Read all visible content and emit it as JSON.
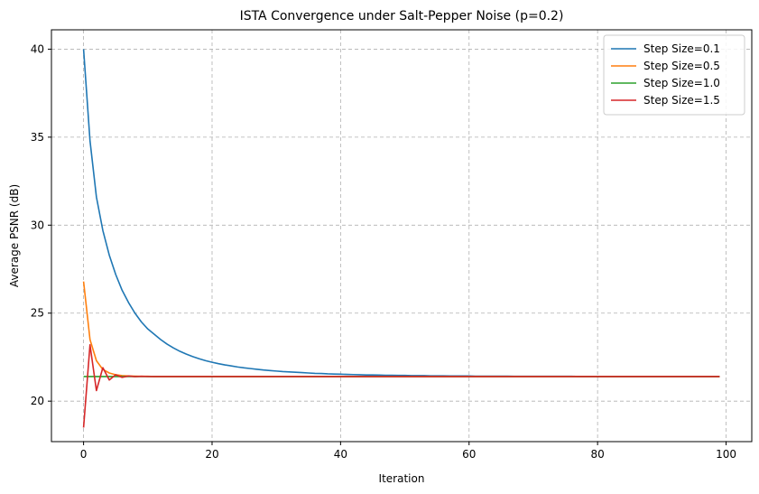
{
  "chart_data": {
    "type": "line",
    "title": "ISTA Convergence under Salt-Pepper Noise (p=0.2)",
    "xlabel": "Iteration",
    "ylabel": "Average PSNR (dB)",
    "xlim": [
      -5,
      104
    ],
    "ylim": [
      17.7,
      41.1
    ],
    "xticks": [
      0,
      20,
      40,
      60,
      80,
      100
    ],
    "yticks": [
      20,
      25,
      30,
      35,
      40
    ],
    "xtick_labels": [
      "0",
      "20",
      "40",
      "60",
      "80",
      "100"
    ],
    "ytick_labels": [
      "20",
      "25",
      "30",
      "35",
      "40"
    ],
    "grid": true,
    "legend_position": "top-right",
    "x": [
      0,
      1,
      2,
      3,
      4,
      5,
      6,
      7,
      8,
      9,
      10,
      11,
      12,
      13,
      14,
      15,
      16,
      17,
      18,
      19,
      20,
      21,
      22,
      23,
      24,
      25,
      26,
      27,
      28,
      29,
      30,
      31,
      32,
      33,
      34,
      35,
      36,
      37,
      38,
      39,
      40,
      41,
      42,
      43,
      44,
      45,
      46,
      47,
      48,
      49,
      50,
      51,
      52,
      53,
      54,
      55,
      56,
      57,
      58,
      59,
      60,
      61,
      62,
      63,
      64,
      65,
      66,
      67,
      68,
      69,
      70,
      71,
      72,
      73,
      74,
      75,
      76,
      77,
      78,
      79,
      80,
      81,
      82,
      83,
      84,
      85,
      86,
      87,
      88,
      89,
      90,
      91,
      92,
      93,
      94,
      95,
      96,
      97,
      98,
      99
    ],
    "series": [
      {
        "name": "Step Size=0.1",
        "color": "#1f77b4",
        "values": [
          40.0,
          34.8,
          31.6,
          29.7,
          28.3,
          27.2,
          26.3,
          25.6,
          25.0,
          24.5,
          24.1,
          23.8,
          23.5,
          23.24,
          23.02,
          22.83,
          22.67,
          22.53,
          22.41,
          22.3,
          22.21,
          22.13,
          22.06,
          22.0,
          21.94,
          21.89,
          21.85,
          21.81,
          21.77,
          21.74,
          21.71,
          21.68,
          21.66,
          21.64,
          21.62,
          21.6,
          21.58,
          21.57,
          21.55,
          21.54,
          21.53,
          21.52,
          21.51,
          21.5,
          21.49,
          21.49,
          21.48,
          21.47,
          21.47,
          21.46,
          21.46,
          21.45,
          21.45,
          21.45,
          21.44,
          21.44,
          21.44,
          21.43,
          21.43,
          21.43,
          21.43,
          21.42,
          21.42,
          21.42,
          21.42,
          21.42,
          21.42,
          21.41,
          21.41,
          21.41,
          21.41,
          21.41,
          21.41,
          21.41,
          21.41,
          21.41,
          21.41,
          21.4,
          21.4,
          21.4,
          21.4,
          21.4,
          21.4,
          21.4,
          21.4,
          21.4,
          21.4,
          21.4,
          21.4,
          21.4,
          21.4,
          21.4,
          21.4,
          21.4,
          21.4,
          21.4,
          21.4,
          21.4,
          21.4,
          21.4
        ]
      },
      {
        "name": "Step Size=0.5",
        "color": "#ff7f0e",
        "values": [
          26.8,
          23.5,
          22.3,
          21.8,
          21.6,
          21.5,
          21.45,
          21.43,
          21.42,
          21.41,
          21.41,
          21.4,
          21.4,
          21.4,
          21.4,
          21.4,
          21.4,
          21.4,
          21.4,
          21.4,
          21.4,
          21.4,
          21.4,
          21.4,
          21.4,
          21.4,
          21.4,
          21.4,
          21.4,
          21.4,
          21.4,
          21.4,
          21.4,
          21.4,
          21.4,
          21.4,
          21.4,
          21.4,
          21.4,
          21.4,
          21.4,
          21.4,
          21.4,
          21.4,
          21.4,
          21.4,
          21.4,
          21.4,
          21.4,
          21.4,
          21.4,
          21.4,
          21.4,
          21.4,
          21.4,
          21.4,
          21.4,
          21.4,
          21.4,
          21.4,
          21.4,
          21.4,
          21.4,
          21.4,
          21.4,
          21.4,
          21.4,
          21.4,
          21.4,
          21.4,
          21.4,
          21.4,
          21.4,
          21.4,
          21.4,
          21.4,
          21.4,
          21.4,
          21.4,
          21.4,
          21.4,
          21.4,
          21.4,
          21.4,
          21.4,
          21.4,
          21.4,
          21.4,
          21.4,
          21.4,
          21.4,
          21.4,
          21.4,
          21.4,
          21.4,
          21.4,
          21.4,
          21.4,
          21.4,
          21.4
        ]
      },
      {
        "name": "Step Size=1.0",
        "color": "#2ca02c",
        "values": [
          21.4,
          21.4,
          21.4,
          21.4,
          21.4,
          21.4,
          21.4,
          21.4,
          21.4,
          21.4,
          21.4,
          21.4,
          21.4,
          21.4,
          21.4,
          21.4,
          21.4,
          21.4,
          21.4,
          21.4,
          21.4,
          21.4,
          21.4,
          21.4,
          21.4,
          21.4,
          21.4,
          21.4,
          21.4,
          21.4,
          21.4,
          21.4,
          21.4,
          21.4,
          21.4,
          21.4,
          21.4,
          21.4,
          21.4,
          21.4,
          21.4,
          21.4,
          21.4,
          21.4,
          21.4,
          21.4,
          21.4,
          21.4,
          21.4,
          21.4,
          21.4,
          21.4,
          21.4,
          21.4,
          21.4,
          21.4,
          21.4,
          21.4,
          21.4,
          21.4,
          21.4,
          21.4,
          21.4,
          21.4,
          21.4,
          21.4,
          21.4,
          21.4,
          21.4,
          21.4,
          21.4,
          21.4,
          21.4,
          21.4,
          21.4,
          21.4,
          21.4,
          21.4,
          21.4,
          21.4,
          21.4,
          21.4,
          21.4,
          21.4,
          21.4,
          21.4,
          21.4,
          21.4,
          21.4,
          21.4,
          21.4,
          21.4,
          21.4,
          21.4,
          21.4,
          21.4,
          21.4,
          21.4,
          21.4,
          21.4
        ]
      },
      {
        "name": "Step Size=1.5",
        "color": "#d62728",
        "values": [
          18.5,
          23.2,
          20.6,
          21.9,
          21.2,
          21.5,
          21.35,
          21.43,
          21.39,
          21.41,
          21.4,
          21.4,
          21.4,
          21.4,
          21.4,
          21.4,
          21.4,
          21.4,
          21.4,
          21.4,
          21.4,
          21.4,
          21.4,
          21.4,
          21.4,
          21.4,
          21.4,
          21.4,
          21.4,
          21.4,
          21.4,
          21.4,
          21.4,
          21.4,
          21.4,
          21.4,
          21.4,
          21.4,
          21.4,
          21.4,
          21.4,
          21.4,
          21.4,
          21.4,
          21.4,
          21.4,
          21.4,
          21.4,
          21.4,
          21.4,
          21.4,
          21.4,
          21.4,
          21.4,
          21.4,
          21.4,
          21.4,
          21.4,
          21.4,
          21.4,
          21.4,
          21.4,
          21.4,
          21.4,
          21.4,
          21.4,
          21.4,
          21.4,
          21.4,
          21.4,
          21.4,
          21.4,
          21.4,
          21.4,
          21.4,
          21.4,
          21.4,
          21.4,
          21.4,
          21.4,
          21.4,
          21.4,
          21.4,
          21.4,
          21.4,
          21.4,
          21.4,
          21.4,
          21.4,
          21.4,
          21.4,
          21.4,
          21.4,
          21.4,
          21.4,
          21.4,
          21.4,
          21.4,
          21.4,
          21.4
        ]
      }
    ]
  }
}
